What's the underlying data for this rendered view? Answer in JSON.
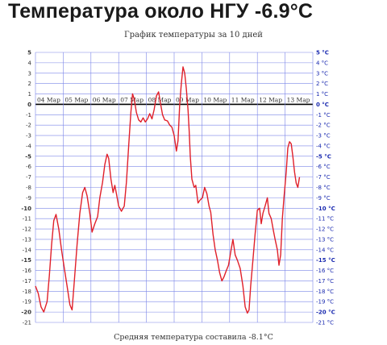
{
  "headline": "Температура около НГУ -6.9°C",
  "footer": "Средняя температура составила -8.1°C",
  "chart_data": {
    "type": "line",
    "title": "График температуры за 10 дней",
    "ylim": [
      -21,
      5
    ],
    "y_ticks_left": [
      {
        "v": 5,
        "label": "5"
      },
      {
        "v": 4,
        "label": "4"
      },
      {
        "v": 3,
        "label": "3"
      },
      {
        "v": 2,
        "label": "2"
      },
      {
        "v": 1,
        "label": "1"
      },
      {
        "v": 0,
        "label": "0"
      },
      {
        "v": -1,
        "label": "-1"
      },
      {
        "v": -2,
        "label": "-2"
      },
      {
        "v": -3,
        "label": "-3"
      },
      {
        "v": -4,
        "label": "-4"
      },
      {
        "v": -5,
        "label": "-5"
      },
      {
        "v": -6,
        "label": "-6"
      },
      {
        "v": -7,
        "label": "-7"
      },
      {
        "v": -8,
        "label": "-8"
      },
      {
        "v": -9,
        "label": "-9"
      },
      {
        "v": -10,
        "label": "-10"
      },
      {
        "v": -11,
        "label": "-11"
      },
      {
        "v": -12,
        "label": "-12"
      },
      {
        "v": -13,
        "label": "-13"
      },
      {
        "v": -14,
        "label": "-14"
      },
      {
        "v": -15,
        "label": "-15"
      },
      {
        "v": -16,
        "label": "-16"
      },
      {
        "v": -17,
        "label": "-17"
      },
      {
        "v": -18,
        "label": "-18"
      },
      {
        "v": -19,
        "label": "-19"
      },
      {
        "v": -20,
        "label": "-20"
      },
      {
        "v": -21,
        "label": "-21"
      }
    ],
    "y_ticks_right": [
      {
        "v": 5,
        "label": "5 °C"
      },
      {
        "v": 4,
        "label": "4 °C"
      },
      {
        "v": 3,
        "label": "3 °C"
      },
      {
        "v": 2,
        "label": "2 °C"
      },
      {
        "v": 1,
        "label": "1 °C"
      },
      {
        "v": 0,
        "label": "0 °C"
      },
      {
        "v": -1,
        "label": "-1 °C"
      },
      {
        "v": -2,
        "label": "-2 °C"
      },
      {
        "v": -3,
        "label": "-3 °C"
      },
      {
        "v": -4,
        "label": "-4 °C"
      },
      {
        "v": -5,
        "label": "-5 °C"
      },
      {
        "v": -6,
        "label": "-6 °C"
      },
      {
        "v": -7,
        "label": "-7 °C"
      },
      {
        "v": -8,
        "label": "-8 °C"
      },
      {
        "v": -9,
        "label": "-9 °C"
      },
      {
        "v": -10,
        "label": "-10 °C"
      },
      {
        "v": -11,
        "label": "-11 °C"
      },
      {
        "v": -12,
        "label": "-12 °C"
      },
      {
        "v": -13,
        "label": "-13 °C"
      },
      {
        "v": -14,
        "label": "-14 °C"
      },
      {
        "v": -15,
        "label": "-15 °C"
      },
      {
        "v": -16,
        "label": "-16 °C"
      },
      {
        "v": -17,
        "label": "-17 °C"
      },
      {
        "v": -18,
        "label": "-18 °C"
      },
      {
        "v": -19,
        "label": "-19 °C"
      },
      {
        "v": -20,
        "label": "-20 °C"
      },
      {
        "v": -21,
        "label": "-21 °C"
      }
    ],
    "x_labels": [
      "04 Мар",
      "05 Мар",
      "06 Мар",
      "07 Мар",
      "08 Мар",
      "09 Мар",
      "10 Мар",
      "11 Мар",
      "12 Мар",
      "13 Мар"
    ],
    "days": 10,
    "grid": true,
    "colors": {
      "line": "#e0202a",
      "grid": "#7b86e8",
      "zero": "#000000",
      "right_labels": "#1a2ab0"
    },
    "series": [
      {
        "points": [
          [
            0.0,
            -17.5
          ],
          [
            0.1,
            -18.2
          ],
          [
            0.2,
            -19.5
          ],
          [
            0.3,
            -20.0
          ],
          [
            0.42,
            -19.0
          ],
          [
            0.5,
            -16.5
          ],
          [
            0.58,
            -13.5
          ],
          [
            0.66,
            -11.2
          ],
          [
            0.74,
            -10.6
          ],
          [
            0.84,
            -12.0
          ],
          [
            0.94,
            -14.0
          ],
          [
            1.04,
            -15.8
          ],
          [
            1.14,
            -17.5
          ],
          [
            1.24,
            -19.3
          ],
          [
            1.32,
            -19.8
          ],
          [
            1.4,
            -17.0
          ],
          [
            1.5,
            -13.5
          ],
          [
            1.6,
            -10.5
          ],
          [
            1.7,
            -8.5
          ],
          [
            1.78,
            -8.0
          ],
          [
            1.86,
            -8.8
          ],
          [
            1.96,
            -10.5
          ],
          [
            2.04,
            -12.3
          ],
          [
            2.14,
            -11.5
          ],
          [
            2.24,
            -10.8
          ],
          [
            2.32,
            -9.0
          ],
          [
            2.42,
            -7.5
          ],
          [
            2.5,
            -5.8
          ],
          [
            2.58,
            -4.8
          ],
          [
            2.64,
            -5.2
          ],
          [
            2.72,
            -7.2
          ],
          [
            2.8,
            -8.5
          ],
          [
            2.86,
            -7.8
          ],
          [
            2.92,
            -8.6
          ],
          [
            3.0,
            -9.8
          ],
          [
            3.1,
            -10.3
          ],
          [
            3.2,
            -9.8
          ],
          [
            3.28,
            -7.5
          ],
          [
            3.36,
            -4.0
          ],
          [
            3.44,
            -0.8
          ],
          [
            3.5,
            1.0
          ],
          [
            3.56,
            0.5
          ],
          [
            3.64,
            -0.8
          ],
          [
            3.72,
            -1.5
          ],
          [
            3.8,
            -1.7
          ],
          [
            3.88,
            -1.3
          ],
          [
            3.96,
            -1.7
          ],
          [
            4.04,
            -1.4
          ],
          [
            4.12,
            -0.9
          ],
          [
            4.2,
            -1.4
          ],
          [
            4.28,
            -0.5
          ],
          [
            4.36,
            0.8
          ],
          [
            4.44,
            1.2
          ],
          [
            4.5,
            0.2
          ],
          [
            4.58,
            -1.0
          ],
          [
            4.66,
            -1.5
          ],
          [
            4.76,
            -1.6
          ],
          [
            4.84,
            -2.0
          ],
          [
            4.92,
            -2.2
          ],
          [
            5.0,
            -3.0
          ],
          [
            5.08,
            -4.5
          ],
          [
            5.14,
            -3.5
          ],
          [
            5.2,
            0.0
          ],
          [
            5.26,
            2.0
          ],
          [
            5.32,
            3.6
          ],
          [
            5.38,
            3.0
          ],
          [
            5.44,
            1.5
          ],
          [
            5.5,
            -0.5
          ],
          [
            5.54,
            -2.5
          ],
          [
            5.58,
            -5.0
          ],
          [
            5.64,
            -7.2
          ],
          [
            5.72,
            -8.0
          ],
          [
            5.78,
            -7.8
          ],
          [
            5.86,
            -9.5
          ],
          [
            5.94,
            -9.2
          ],
          [
            6.02,
            -9.0
          ],
          [
            6.1,
            -8.0
          ],
          [
            6.18,
            -8.6
          ],
          [
            6.26,
            -9.8
          ],
          [
            6.32,
            -10.4
          ],
          [
            6.4,
            -12.5
          ],
          [
            6.48,
            -14.0
          ],
          [
            6.56,
            -15.0
          ],
          [
            6.64,
            -16.2
          ],
          [
            6.72,
            -17.0
          ],
          [
            6.8,
            -16.6
          ],
          [
            6.88,
            -16.0
          ],
          [
            6.96,
            -15.5
          ],
          [
            7.04,
            -14.2
          ],
          [
            7.12,
            -13.0
          ],
          [
            7.2,
            -14.5
          ],
          [
            7.28,
            -15.0
          ],
          [
            7.38,
            -15.8
          ],
          [
            7.48,
            -17.5
          ],
          [
            7.56,
            -19.5
          ],
          [
            7.64,
            -20.1
          ],
          [
            7.7,
            -19.8
          ],
          [
            7.76,
            -17.5
          ],
          [
            7.84,
            -15.0
          ],
          [
            7.92,
            -12.5
          ],
          [
            8.0,
            -10.2
          ],
          [
            8.08,
            -10.0
          ],
          [
            8.14,
            -11.5
          ],
          [
            8.2,
            -10.5
          ],
          [
            8.28,
            -9.8
          ],
          [
            8.36,
            -9.0
          ],
          [
            8.42,
            -10.5
          ],
          [
            8.5,
            -11.0
          ],
          [
            8.58,
            -12.2
          ],
          [
            8.64,
            -13.0
          ],
          [
            8.72,
            -14.0
          ],
          [
            8.78,
            -15.5
          ],
          [
            8.84,
            -14.5
          ],
          [
            8.9,
            -11.0
          ],
          [
            8.96,
            -9.0
          ],
          [
            9.04,
            -6.5
          ],
          [
            9.1,
            -4.2
          ],
          [
            9.16,
            -3.6
          ],
          [
            9.22,
            -3.8
          ],
          [
            9.28,
            -5.0
          ],
          [
            9.34,
            -6.5
          ],
          [
            9.4,
            -7.6
          ],
          [
            9.46,
            -8.0
          ],
          [
            9.52,
            -7.0
          ]
        ]
      }
    ]
  }
}
